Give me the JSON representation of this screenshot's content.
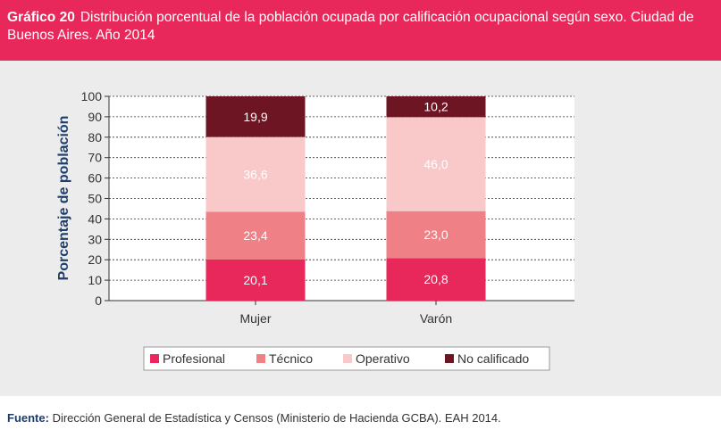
{
  "header": {
    "label": "Gráfico 20",
    "title": "Distribución porcentual de la población ocupada por calificación ocupacional según sexo. Ciudad de Buenos Aires. Año 2014"
  },
  "source": {
    "label": "Fuente:",
    "text": "Dirección General de Estadística y Censos (Ministerio de Hacienda GCBA). EAH 2014."
  },
  "colors": {
    "header_bg": "#e8285a",
    "profesional": "#e8285a",
    "tecnico": "#ef8085",
    "operativo": "#f9c8c9",
    "no_calificado": "#6e1523",
    "axis_label": "#1f3d6b"
  },
  "chart_data": {
    "type": "bar",
    "stacked": true,
    "categories": [
      "Mujer",
      "Varón"
    ],
    "series": [
      {
        "name": "Profesional",
        "values": [
          20.1,
          20.8
        ],
        "labels": [
          "20,1",
          "20,8"
        ]
      },
      {
        "name": "Técnico",
        "values": [
          23.4,
          23.0
        ],
        "labels": [
          "23,4",
          "23,0"
        ]
      },
      {
        "name": "Operativo",
        "values": [
          36.6,
          46.0
        ],
        "labels": [
          "36,6",
          "46,0"
        ]
      },
      {
        "name": "No calificado",
        "values": [
          19.9,
          10.2
        ],
        "labels": [
          "19,9",
          "10,2"
        ]
      }
    ],
    "ylabel": "Porcentaje de población",
    "ylim": [
      0,
      100
    ],
    "yticks": [
      "0",
      "10",
      "20",
      "30",
      "40",
      "50",
      "60",
      "70",
      "80",
      "90",
      "100"
    ],
    "grid": true,
    "legend": "bottom"
  }
}
